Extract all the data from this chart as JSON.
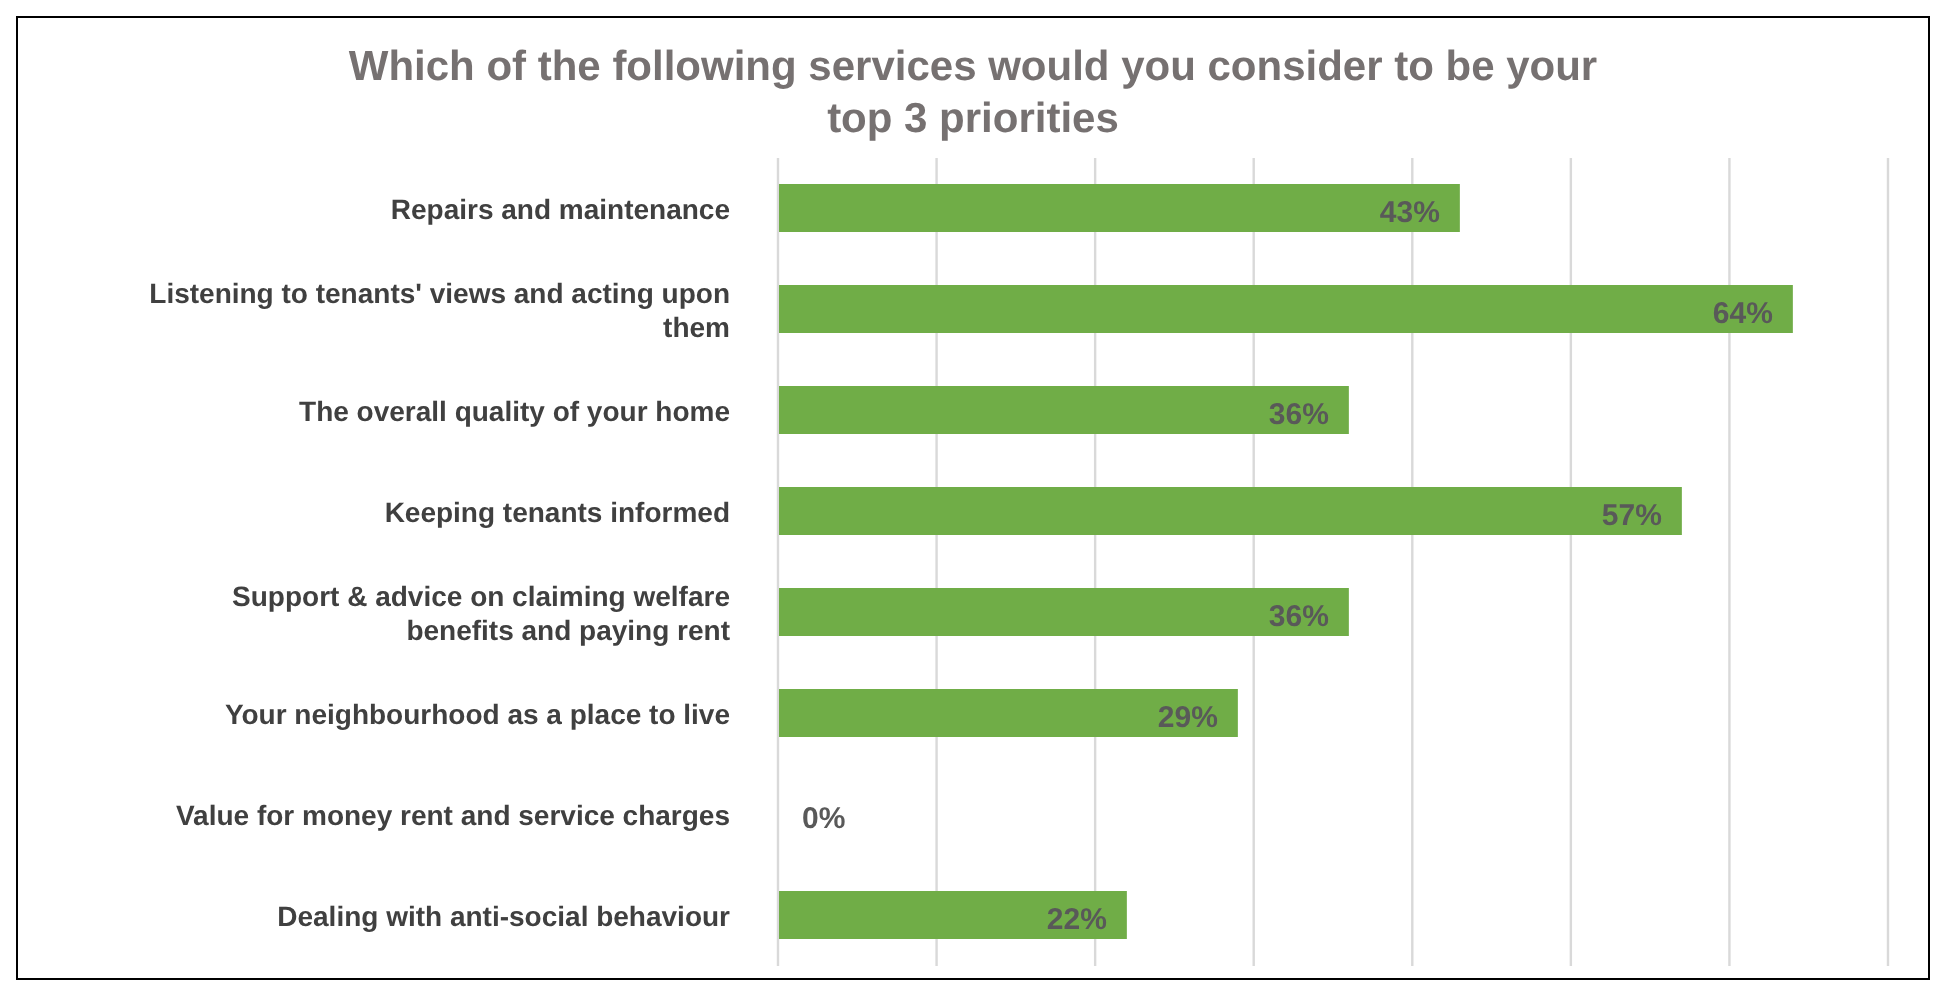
{
  "chart_data": {
    "type": "bar",
    "orientation": "horizontal",
    "title": "Which of the following services would you consider to be your top 3 priorities",
    "categories": [
      "Repairs and maintenance",
      "Listening to tenants' views and acting upon them",
      "The overall quality of your home",
      "Keeping tenants informed",
      "Support & advice on claiming welfare benefits and paying rent",
      "Your neighbourhood as a place to live",
      "Value for money rent and service charges",
      "Dealing with anti-social behaviour"
    ],
    "values": [
      43,
      64,
      36,
      57,
      36,
      29,
      0,
      22
    ],
    "value_labels": [
      "43%",
      "64%",
      "36%",
      "57%",
      "36%",
      "29%",
      "0%",
      "22%"
    ],
    "color": "#70ad47",
    "xlim": [
      0,
      70
    ],
    "xticks": [
      {
        "value": 0,
        "label": null
      },
      {
        "value": 10,
        "label": null
      },
      {
        "value": 20,
        "label": null
      },
      {
        "value": 30,
        "label": null
      },
      {
        "value": 40,
        "label": null
      },
      {
        "value": 50,
        "label": null
      },
      {
        "value": 60,
        "label": null
      },
      {
        "value": 70,
        "label": null
      }
    ],
    "grid": "x",
    "legend": false
  }
}
